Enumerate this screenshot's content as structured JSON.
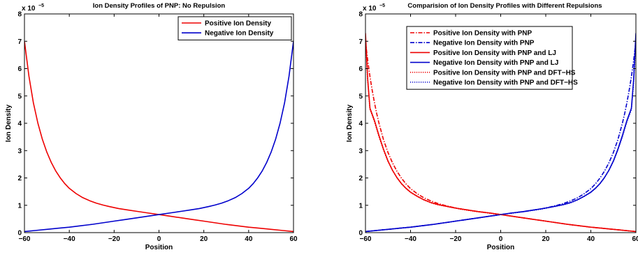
{
  "chart_data": [
    {
      "type": "line",
      "title": "Ion Density Profiles of PNP: No Repulsion",
      "xlabel": "Position",
      "ylabel": "Ion Density",
      "y_exponent_label": "x 10",
      "y_exponent_power": "−5",
      "xlim": [
        -60,
        60
      ],
      "ylim": [
        0,
        8
      ],
      "xticks": [
        "−60",
        "−40",
        "−20",
        "0",
        "20",
        "40",
        "60"
      ],
      "yticks": [
        "0",
        "1",
        "2",
        "3",
        "4",
        "5",
        "6",
        "7",
        "8"
      ],
      "legend_position": "top-right",
      "grid": false,
      "series": [
        {
          "name": "Positive Ion Density",
          "color": "#ee0000",
          "style": "solid",
          "x": [
            -60,
            -58,
            -56,
            -54,
            -52,
            -50,
            -48,
            -46,
            -44,
            -42,
            -40,
            -37,
            -34,
            -31,
            -28,
            -25,
            -22,
            -18,
            -14,
            -10,
            -5,
            0,
            5,
            10,
            15,
            20,
            25,
            30,
            35,
            40,
            45,
            50,
            55,
            60
          ],
          "y": [
            7.0,
            5.72,
            4.74,
            4.0,
            3.41,
            2.94,
            2.56,
            2.25,
            2.0,
            1.79,
            1.62,
            1.43,
            1.28,
            1.17,
            1.08,
            1.01,
            0.95,
            0.88,
            0.83,
            0.78,
            0.72,
            0.66,
            0.6,
            0.54,
            0.48,
            0.42,
            0.36,
            0.3,
            0.25,
            0.2,
            0.16,
            0.12,
            0.08,
            0.04
          ]
        },
        {
          "name": "Negative Ion Density",
          "color": "#0000cc",
          "style": "solid",
          "x": [
            -60,
            -55,
            -50,
            -45,
            -40,
            -35,
            -30,
            -25,
            -20,
            -15,
            -10,
            -5,
            0,
            5,
            10,
            14,
            18,
            22,
            25,
            28,
            31,
            34,
            37,
            40,
            42,
            44,
            46,
            48,
            50,
            52,
            54,
            56,
            58,
            60
          ],
          "y": [
            0.04,
            0.08,
            0.12,
            0.16,
            0.2,
            0.25,
            0.3,
            0.36,
            0.42,
            0.48,
            0.54,
            0.6,
            0.66,
            0.72,
            0.78,
            0.83,
            0.88,
            0.95,
            1.01,
            1.08,
            1.17,
            1.28,
            1.43,
            1.62,
            1.79,
            2.0,
            2.25,
            2.56,
            2.94,
            3.41,
            4.0,
            4.74,
            5.72,
            7.0
          ]
        }
      ]
    },
    {
      "type": "line",
      "title": "Comparision of Ion Density Profiles with Different Repulsions",
      "xlabel": "Position",
      "ylabel": "Ion Density",
      "y_exponent_label": "x 10",
      "y_exponent_power": "−5",
      "xlim": [
        -60,
        60
      ],
      "ylim": [
        0,
        8
      ],
      "xticks": [
        "−60",
        "−40",
        "−20",
        "0",
        "20",
        "40",
        "60"
      ],
      "yticks": [
        "0",
        "1",
        "2",
        "3",
        "4",
        "5",
        "6",
        "7",
        "8"
      ],
      "legend_position": "top-center",
      "grid": false,
      "series": [
        {
          "name": "Positive Ion Density with PNP",
          "color": "#ee0000",
          "style": "dashdot",
          "x": [
            -60,
            -59,
            -58,
            -57,
            -56,
            -55,
            -54,
            -52,
            -50,
            -48,
            -46,
            -44,
            -42,
            -40,
            -37,
            -34,
            -31,
            -28,
            -25,
            -22,
            -18,
            -14,
            -10,
            -5,
            0,
            5,
            10,
            15,
            20,
            25,
            30,
            35,
            40,
            45,
            50,
            55,
            60
          ],
          "y": [
            7.0,
            6.3,
            5.7,
            5.2,
            4.75,
            4.35,
            4.0,
            3.4,
            2.93,
            2.55,
            2.24,
            1.99,
            1.78,
            1.61,
            1.42,
            1.27,
            1.16,
            1.07,
            1.0,
            0.94,
            0.87,
            0.82,
            0.77,
            0.72,
            0.66,
            0.6,
            0.54,
            0.48,
            0.42,
            0.36,
            0.3,
            0.25,
            0.2,
            0.16,
            0.12,
            0.08,
            0.04
          ]
        },
        {
          "name": "Negative Ion Density with PNP",
          "color": "#0000cc",
          "style": "dashdot",
          "x": [
            -60,
            -55,
            -50,
            -45,
            -40,
            -35,
            -30,
            -25,
            -20,
            -15,
            -10,
            -5,
            0,
            5,
            10,
            14,
            18,
            22,
            25,
            28,
            31,
            34,
            37,
            40,
            42,
            44,
            46,
            48,
            50,
            52,
            54,
            55,
            56,
            57,
            58,
            59,
            60
          ],
          "y": [
            0.04,
            0.08,
            0.12,
            0.16,
            0.2,
            0.25,
            0.3,
            0.36,
            0.42,
            0.48,
            0.54,
            0.6,
            0.66,
            0.72,
            0.77,
            0.82,
            0.87,
            0.94,
            1.0,
            1.07,
            1.16,
            1.27,
            1.42,
            1.61,
            1.78,
            1.99,
            2.24,
            2.55,
            2.93,
            3.4,
            4.0,
            4.35,
            4.75,
            5.2,
            5.7,
            6.3,
            7.0
          ]
        },
        {
          "name": "Positive Ion Density with PNP and LJ",
          "color": "#ee0000",
          "style": "solid",
          "x": [
            -60,
            -59,
            -58,
            -56,
            -54,
            -52,
            -50,
            -48,
            -46,
            -44,
            -42,
            -40,
            -37,
            -34,
            -31,
            -28,
            -25,
            -22,
            -18,
            -14,
            -10,
            -5,
            0,
            5,
            10,
            15,
            20,
            25,
            30,
            35,
            40,
            45,
            50,
            55,
            60
          ],
          "y": [
            7.3,
            5.6,
            4.55,
            4.1,
            3.55,
            3.05,
            2.62,
            2.28,
            2.01,
            1.79,
            1.62,
            1.48,
            1.33,
            1.2,
            1.1,
            1.03,
            0.98,
            0.93,
            0.87,
            0.82,
            0.77,
            0.72,
            0.66,
            0.6,
            0.54,
            0.48,
            0.42,
            0.36,
            0.3,
            0.25,
            0.2,
            0.16,
            0.12,
            0.08,
            0.04
          ]
        },
        {
          "name": "Negative Ion Density with PNP and LJ",
          "color": "#0000cc",
          "style": "solid",
          "x": [
            -60,
            -55,
            -50,
            -45,
            -40,
            -35,
            -30,
            -25,
            -20,
            -15,
            -10,
            -5,
            0,
            5,
            10,
            14,
            18,
            22,
            25,
            28,
            31,
            34,
            37,
            40,
            42,
            44,
            46,
            48,
            50,
            52,
            54,
            56,
            58,
            59,
            60
          ],
          "y": [
            0.04,
            0.08,
            0.12,
            0.16,
            0.2,
            0.25,
            0.3,
            0.36,
            0.42,
            0.48,
            0.54,
            0.6,
            0.66,
            0.72,
            0.77,
            0.82,
            0.87,
            0.93,
            0.98,
            1.03,
            1.1,
            1.2,
            1.33,
            1.48,
            1.62,
            1.79,
            2.01,
            2.28,
            2.62,
            3.05,
            3.55,
            4.1,
            4.55,
            5.6,
            7.3
          ]
        },
        {
          "name": "Positive Ion Density with PNP and DFT−HS",
          "color": "#ee0000",
          "style": "dotted",
          "x": [
            -60,
            -59,
            -58,
            -56,
            -54,
            -52,
            -50,
            -48,
            -46,
            -44,
            -42,
            -40,
            -37,
            -34,
            -31,
            -28,
            -25,
            -22,
            -18,
            -14,
            -10,
            -5,
            0,
            5,
            10,
            15,
            20,
            25,
            30,
            35,
            40,
            45,
            50,
            55,
            60
          ],
          "y": [
            7.1,
            5.5,
            4.5,
            4.05,
            3.5,
            3.02,
            2.6,
            2.27,
            2.0,
            1.78,
            1.61,
            1.47,
            1.32,
            1.19,
            1.09,
            1.02,
            0.97,
            0.92,
            0.86,
            0.81,
            0.76,
            0.71,
            0.66,
            0.6,
            0.54,
            0.48,
            0.42,
            0.36,
            0.3,
            0.25,
            0.2,
            0.16,
            0.12,
            0.08,
            0.04
          ]
        },
        {
          "name": "Negative Ion Density with PNP and DFT−HS",
          "color": "#0000cc",
          "style": "dotted",
          "x": [
            -60,
            -55,
            -50,
            -45,
            -40,
            -35,
            -30,
            -25,
            -20,
            -15,
            -10,
            -5,
            0,
            5,
            10,
            14,
            18,
            22,
            25,
            28,
            31,
            34,
            37,
            40,
            42,
            44,
            46,
            48,
            50,
            52,
            54,
            56,
            58,
            59,
            60
          ],
          "y": [
            0.04,
            0.08,
            0.12,
            0.16,
            0.2,
            0.25,
            0.3,
            0.36,
            0.42,
            0.48,
            0.54,
            0.6,
            0.66,
            0.71,
            0.76,
            0.81,
            0.86,
            0.92,
            0.97,
            1.02,
            1.09,
            1.19,
            1.32,
            1.47,
            1.61,
            1.78,
            2.0,
            2.27,
            2.6,
            3.02,
            3.5,
            4.05,
            4.5,
            5.5,
            7.1
          ]
        }
      ]
    }
  ]
}
